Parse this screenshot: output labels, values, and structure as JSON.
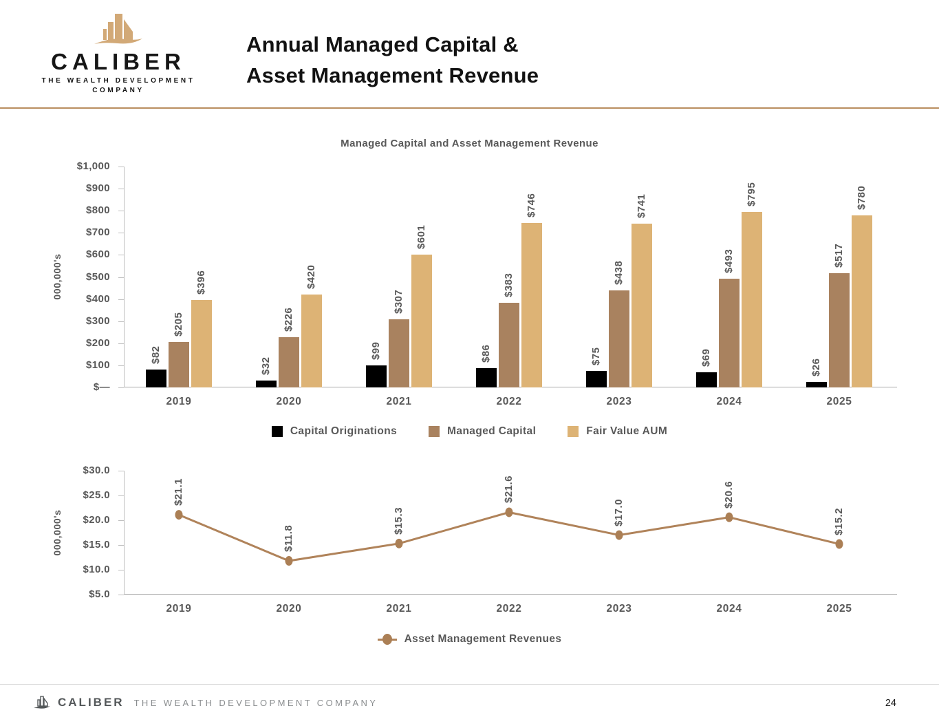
{
  "header": {
    "logo": {
      "brand": "CALIBER",
      "tagline_line1": "THE WEALTH DEVELOPMENT",
      "tagline_line2": "COMPANY"
    },
    "title_line1": "Annual Managed Capital &",
    "title_line2": "Asset Management Revenue"
  },
  "colors": {
    "accent_divider": "#b98e60",
    "capital_originations": "#000000",
    "managed_capital": "#a9825f",
    "fair_value_aum": "#ddb375",
    "revenue_line": "#b0835a",
    "axis_text": "#595959"
  },
  "chart_data": [
    {
      "type": "bar",
      "title": "Managed Capital and Asset Management Revenue",
      "xlabel": "",
      "ylabel": "000,000's",
      "categories": [
        "2019",
        "2020",
        "2021",
        "2022",
        "2023",
        "2024",
        "2025"
      ],
      "series": [
        {
          "name": "Capital Originations",
          "color": "#000000",
          "values": [
            82,
            32,
            99,
            86,
            75,
            69,
            26
          ],
          "labels": [
            "$82",
            "$32",
            "$99",
            "$86",
            "$75",
            "$69",
            "$26"
          ]
        },
        {
          "name": "Managed Capital",
          "color": "#a9825f",
          "values": [
            205,
            226,
            307,
            383,
            438,
            493,
            517
          ],
          "labels": [
            "$205",
            "$226",
            "$307",
            "$383",
            "$438",
            "$493",
            "$517"
          ]
        },
        {
          "name": "Fair Value AUM",
          "color": "#ddb375",
          "values": [
            396,
            420,
            601,
            746,
            741,
            795,
            780
          ],
          "labels": [
            "$396",
            "$420",
            "$601",
            "$746",
            "$741",
            "$795",
            "$780"
          ]
        }
      ],
      "ylim": [
        0,
        1000
      ],
      "ytick_labels_top_to_bottom": [
        "$1,000",
        "$900",
        "$800",
        "$700",
        "$600",
        "$500",
        "$400",
        "$300",
        "$200",
        "$100",
        "$—"
      ],
      "grid": false,
      "legend_position": "bottom"
    },
    {
      "type": "line",
      "title": "",
      "xlabel": "",
      "ylabel": "000,000's",
      "categories": [
        "2019",
        "2020",
        "2021",
        "2022",
        "2023",
        "2024",
        "2025"
      ],
      "series": [
        {
          "name": "Asset Management Revenues",
          "color": "#b0835a",
          "values": [
            21.1,
            11.8,
            15.3,
            21.6,
            17.0,
            20.6,
            15.2
          ],
          "labels": [
            "$21.1",
            "$11.8",
            "$15.3",
            "$21.6",
            "$17.0",
            "$20.6",
            "$15.2"
          ]
        }
      ],
      "ylim": [
        5,
        30
      ],
      "ytick_labels_top_to_bottom": [
        "$30.0",
        "$25.0",
        "$20.0",
        "$15.0",
        "$10.0",
        "$5.0"
      ],
      "grid": false,
      "legend_position": "bottom"
    }
  ],
  "footer": {
    "brand": "CALIBER",
    "company": "THE WEALTH DEVELOPMENT COMPANY",
    "page_number": "24"
  }
}
